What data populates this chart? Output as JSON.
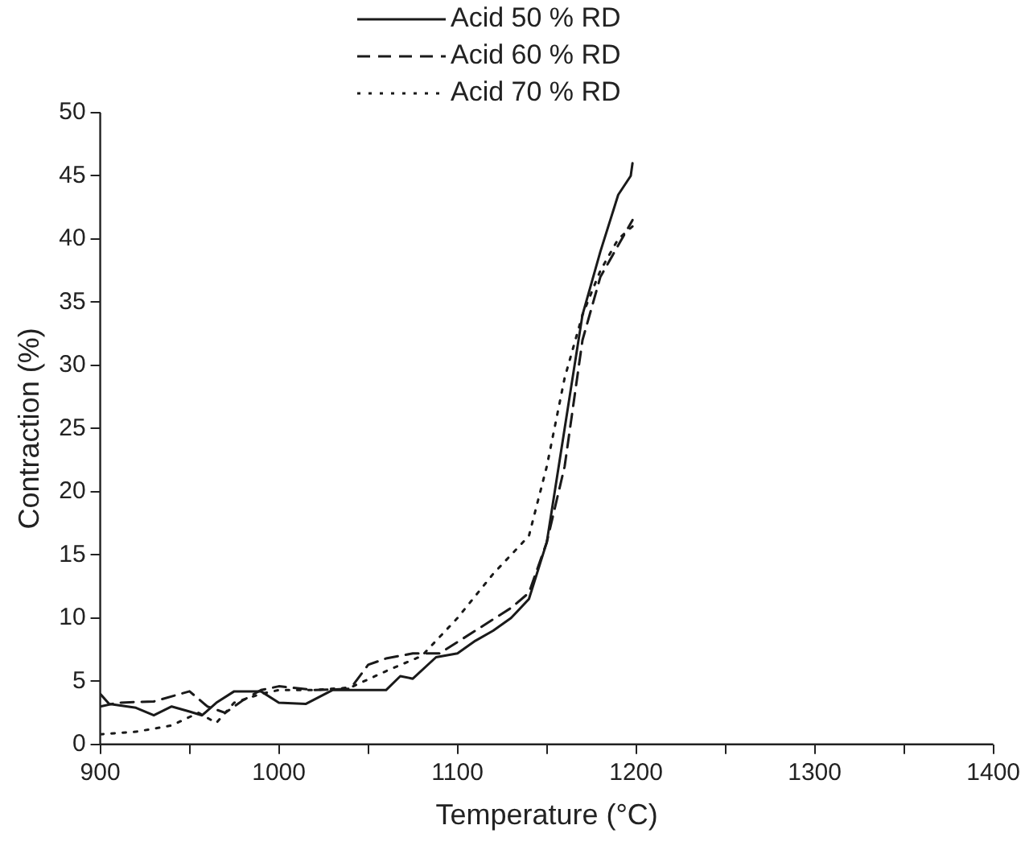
{
  "chart_data": {
    "type": "line",
    "xlabel": "Temperature (°C)",
    "ylabel": "Contraction (%)",
    "xlim": [
      900,
      1400
    ],
    "xticks": [
      900,
      {
        "value": 950,
        "label": null
      },
      1000,
      {
        "value": 1050,
        "label": null
      },
      1100,
      {
        "value": 1150,
        "label": null
      },
      1200,
      {
        "value": 1250,
        "label": null
      },
      1300,
      {
        "value": 1350,
        "label": null
      },
      1400
    ],
    "ylim": [
      0,
      50
    ],
    "yticks": [
      0,
      5,
      10,
      15,
      20,
      25,
      30,
      35,
      40,
      45,
      50
    ],
    "grid": false,
    "legend": "top",
    "marker": "none",
    "series": [
      {
        "name": "Acid 50 % RD",
        "color": "#1a1a1a",
        "line_style": "solid",
        "x": [
          900,
          905,
          920,
          930,
          940,
          950,
          957,
          965,
          975,
          990,
          1000,
          1015,
          1030,
          1060,
          1068,
          1075,
          1088,
          1100,
          1110,
          1120,
          1130,
          1140,
          1150,
          1160,
          1170,
          1180,
          1190,
          1197,
          1198
        ],
        "values": [
          4.0,
          3.2,
          2.9,
          2.3,
          3.0,
          2.6,
          2.3,
          3.3,
          4.2,
          4.2,
          3.3,
          3.2,
          4.3,
          4.3,
          5.4,
          5.2,
          6.9,
          7.2,
          8.2,
          9.0,
          10,
          11.5,
          16,
          25,
          34,
          39,
          43.5,
          45,
          46
        ]
      },
      {
        "name": "Acid 60 % RD",
        "color": "#1a1a1a",
        "line_style": "dashed",
        "x": [
          900,
          910,
          930,
          950,
          960,
          970,
          980,
          990,
          1000,
          1020,
          1040,
          1050,
          1060,
          1075,
          1090,
          1110,
          1130,
          1140,
          1150,
          1160,
          1170,
          1180,
          1190,
          1198
        ],
        "values": [
          3.0,
          3.3,
          3.4,
          4.2,
          3.0,
          2.5,
          3.5,
          4.3,
          4.6,
          4.3,
          4.4,
          6.3,
          6.8,
          7.2,
          7.2,
          9,
          10.8,
          12,
          16,
          22,
          32,
          37,
          39.5,
          41.5
        ]
      },
      {
        "name": "Acid 70 % RD",
        "color": "#1a1a1a",
        "line_style": "dotted",
        "x": [
          900,
          920,
          940,
          955,
          965,
          975,
          990,
          1000,
          1020,
          1040,
          1060,
          1080,
          1100,
          1120,
          1140,
          1150,
          1160,
          1170,
          1180,
          1190,
          1198
        ],
        "values": [
          0.8,
          1.0,
          1.5,
          2.5,
          1.7,
          3.3,
          4.0,
          4.3,
          4.3,
          4.5,
          5.8,
          7.0,
          10,
          13.5,
          16.5,
          22,
          29,
          34,
          37.5,
          40,
          41
        ]
      }
    ]
  }
}
